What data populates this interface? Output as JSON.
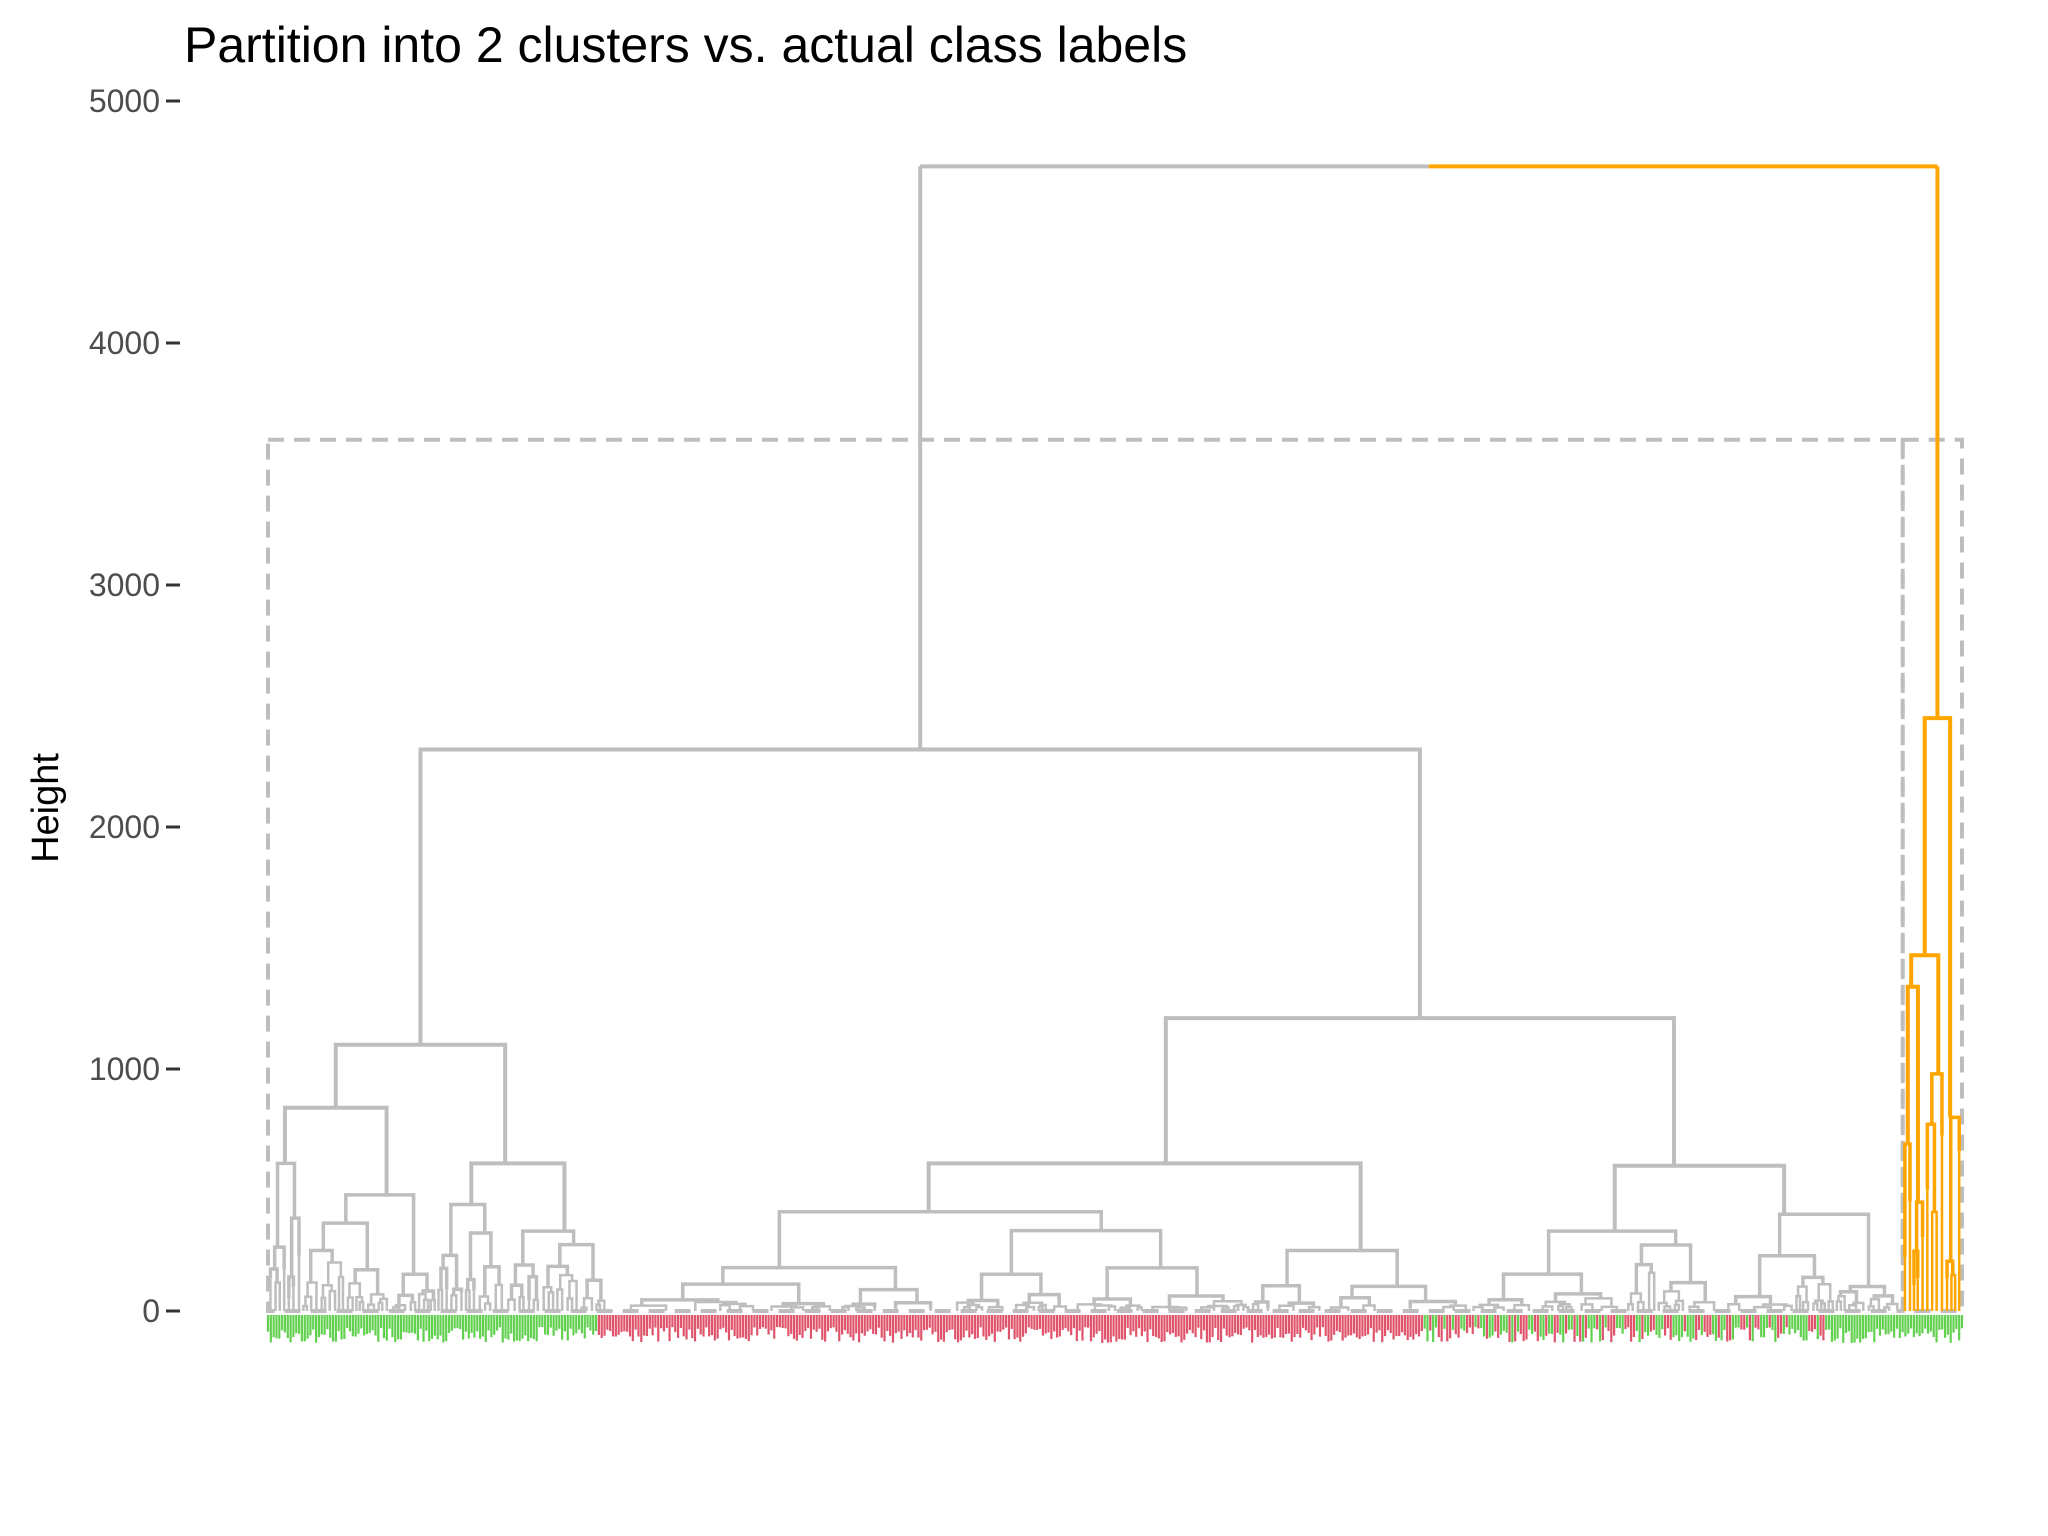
{
  "chart_data": {
    "type": "dendrogram",
    "title": "Partition into 2 clusters vs. actual class labels",
    "xlabel": "",
    "ylabel": "Height",
    "ylim": [
      0,
      5000
    ],
    "y_ticks": [
      0,
      1000,
      2000,
      3000,
      4000,
      5000
    ],
    "y_tick_labels": [
      "0",
      "1000",
      "2000",
      "3000",
      "4000",
      "5000"
    ],
    "grid": false,
    "colors": {
      "main_cluster": "#bebebe",
      "small_cluster": "#ffa500",
      "cut_rectangles": "#bebebe",
      "label_class_1": "#61d04f",
      "label_class_2": "#df536b"
    },
    "root_height": 4730,
    "clusters": [
      {
        "cluster": 1,
        "color": "main_cluster",
        "height": 2320,
        "rect_top": 3600,
        "x_span": [
          0,
          0.965
        ],
        "merges": [
          {
            "h": 2320,
            "left": 1100,
            "right": 1210
          },
          {
            "h": 1100,
            "left": 840,
            "right": 610
          },
          {
            "h": 840,
            "left": 610,
            "right": 480
          },
          {
            "h": 610,
            "left": 440,
            "right": 330
          },
          {
            "h": 1210,
            "left": 610,
            "right": 600
          },
          {
            "h": 610,
            "left": 410,
            "right": 250
          },
          {
            "h": 600,
            "left": 330,
            "right": 400
          }
        ]
      },
      {
        "cluster": 2,
        "color": "small_cluster",
        "height": 2450,
        "rect_top": 3600,
        "x_span": [
          0.965,
          1.0
        ],
        "merges": [
          {
            "h": 2450,
            "left": 1470,
            "right": 800
          },
          {
            "h": 1470,
            "left": 1340,
            "right": 980
          },
          {
            "h": 1340,
            "left": 690,
            "right": 450
          }
        ]
      }
    ],
    "leaf_label_segments": [
      {
        "from": 0,
        "to": 0.195,
        "class": "label_class_1"
      },
      {
        "from": 0.195,
        "to": 0.68,
        "class": "label_class_2"
      },
      {
        "from": 0.68,
        "to": 0.8,
        "class": "mixed"
      },
      {
        "from": 0.8,
        "to": 0.92,
        "class": "mixed"
      },
      {
        "from": 0.92,
        "to": 1.0,
        "class": "label_class_1"
      }
    ]
  }
}
